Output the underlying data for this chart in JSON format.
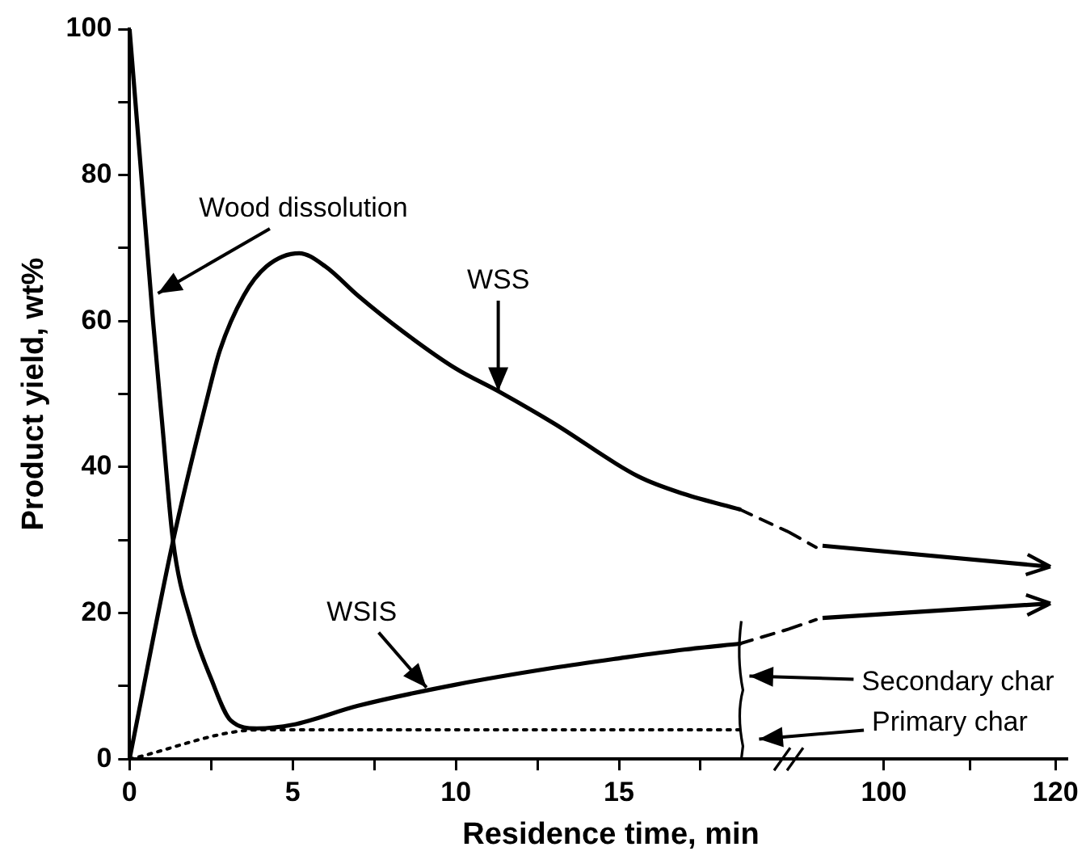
{
  "chart_data": [
    {
      "type": "line",
      "xlabel": "Residence time, min",
      "ylabel": "Product yield, wt%",
      "xlim": [
        0,
        20.2
      ],
      "ylim": [
        0,
        100
      ],
      "xticks": [
        0,
        {
          "value": 2.5,
          "label": null
        },
        5,
        {
          "value": 7.5,
          "label": null
        },
        10,
        {
          "value": 12.5,
          "label": null
        },
        15,
        {
          "value": 17.5,
          "label": null
        }
      ],
      "yticks": [
        0,
        {
          "value": 10,
          "label": null
        },
        20,
        {
          "value": 30,
          "label": null
        },
        40,
        {
          "value": 50,
          "label": null
        },
        60,
        {
          "value": 70,
          "label": null
        },
        80,
        {
          "value": 90,
          "label": null
        },
        100
      ],
      "marker": "none",
      "line_style": "solid",
      "series": [
        {
          "color": "#000000",
          "x": [
            0,
            0.36,
            0.72,
            1.0,
            1.33,
            1.9,
            2.5,
            3.1,
            3.9,
            5,
            7,
            10,
            13,
            15,
            17,
            18.7
          ],
          "values": [
            100,
            80,
            60,
            46,
            30,
            18.5,
            11,
            5.3,
            4.2,
            4.7,
            7.3,
            10.2,
            12.5,
            13.8,
            15,
            15.8
          ]
        },
        {
          "color": "#000000",
          "x": [
            0,
            1.33,
            2.4,
            2.77,
            3.5,
            4.2,
            5.2,
            6,
            7,
            8.4,
            10,
            11.3,
            13,
            15.6,
            17,
            18.7
          ],
          "values": [
            0,
            29.8,
            49.8,
            56,
            63.5,
            67.5,
            69.3,
            67.5,
            63.5,
            58.5,
            53.5,
            50.4,
            46,
            38.7,
            36.3,
            34.2
          ]
        },
        {
          "color": "#000000",
          "line_style": "dotted",
          "x": [
            0,
            4,
            18.7
          ],
          "values": [
            0,
            4,
            4
          ]
        },
        {
          "color": "#000000",
          "line_style": "dashed",
          "x": [
            18.7,
            20.2
          ],
          "values": [
            34.2,
            31.1
          ]
        },
        {
          "color": "#000000",
          "line_style": "dashed",
          "x": [
            18.7,
            20.2
          ],
          "values": [
            15.8,
            17.8
          ]
        }
      ],
      "annotations": [
        {
          "text": "Wood dissolution",
          "x": 0.87,
          "y": 63.8
        },
        {
          "text": "WSS",
          "x": 11.3,
          "y": 50.4
        },
        {
          "text": "WSIS",
          "x": 9.1,
          "y": 9.8
        },
        "Secondary char",
        "Primary char"
      ]
    },
    {
      "type": "line",
      "xlim": [
        88.9,
        121.3
      ],
      "ylim": [
        0,
        100
      ],
      "xticks": [
        100,
        {
          "value": 110,
          "label": null
        },
        120
      ],
      "tick_labels": "x",
      "marker": "none",
      "line_style": "dashed",
      "series": [
        {
          "color": "#000000",
          "x": [
            88.9,
            92.1
          ],
          "values": [
            31.1,
            29
          ]
        },
        {
          "color": "#000000",
          "x": [
            88.9,
            92.1
          ],
          "values": [
            17.8,
            19.1
          ]
        }
      ]
    }
  ]
}
